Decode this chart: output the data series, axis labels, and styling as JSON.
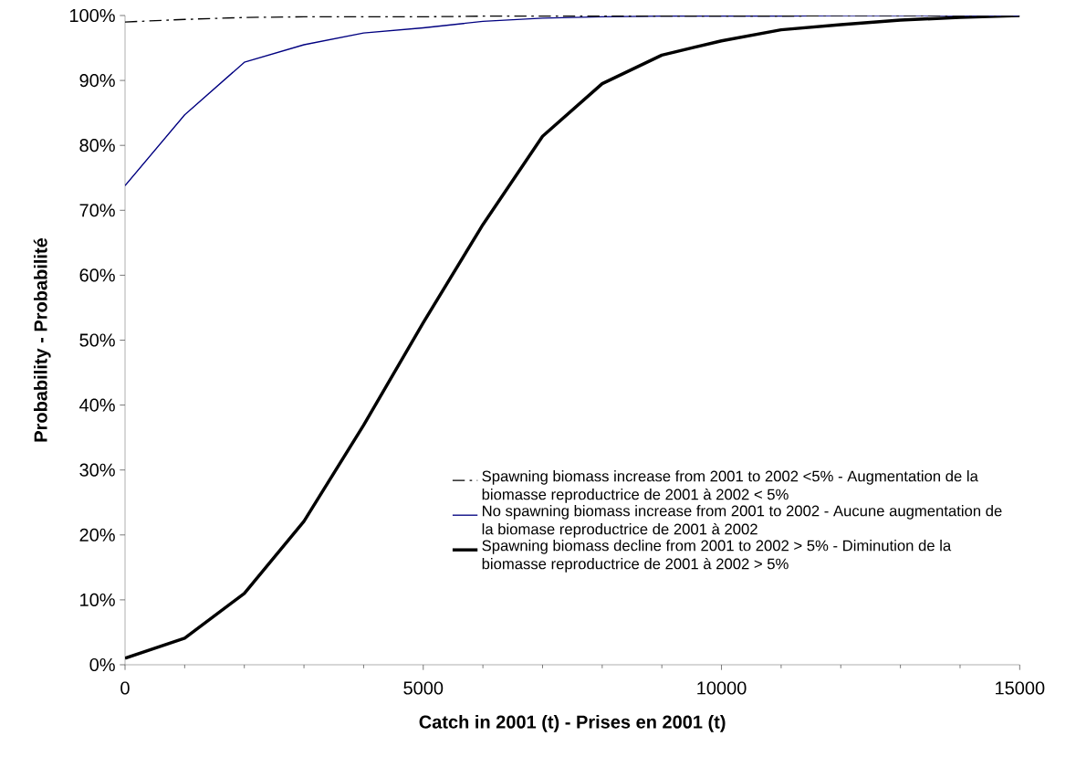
{
  "chart_data": {
    "type": "line",
    "xlabel": "Catch in 2001 (t) - Prises en 2001 (t)",
    "ylabel": "Probability - Probabilité",
    "x": [
      0,
      1000,
      2000,
      3000,
      4000,
      5000,
      6000,
      7000,
      8000,
      9000,
      10000,
      11000,
      12000,
      13000,
      14000,
      15000
    ],
    "series": [
      {
        "name": "Spawning biomass increase from 2001 to 2002 <5% - Augmentation de la biomasse reproductrice de 2001 à 2002 < 5%",
        "color": "#000000",
        "line_style": "dashdot",
        "values": [
          99.0,
          99.4,
          99.7,
          99.8,
          99.8,
          99.8,
          99.9,
          99.9,
          99.9,
          99.9,
          99.9,
          99.9,
          100,
          100,
          100,
          100
        ]
      },
      {
        "name": "No spawning biomass increase from 2001 to 2002 - Aucune augmentation de la biomase reproductrice de 2001 à 2002",
        "color": "#000080",
        "line_style": "solid",
        "values": [
          73.8,
          84.7,
          92.8,
          95.5,
          97.3,
          98.1,
          99.1,
          99.6,
          99.8,
          99.9,
          99.9,
          99.9,
          100,
          100,
          100,
          100
        ]
      },
      {
        "name": "Spawning biomass decline from 2001 to 2002 > 5% - Diminution de la biomasse reproductrice de 2001 à 2002 > 5%",
        "color": "#000000",
        "line_style": "solid",
        "values": [
          1.0,
          4.1,
          11.0,
          22.1,
          36.9,
          52.7,
          67.8,
          81.4,
          89.5,
          93.9,
          96.1,
          97.8,
          98.6,
          99.3,
          99.7,
          100
        ]
      }
    ],
    "xlim": [
      0,
      15000
    ],
    "xticks": [
      0,
      5000,
      10000,
      15000
    ],
    "ylim": [
      0,
      100
    ],
    "yticks": [
      {
        "value": 0,
        "label": "0%"
      },
      {
        "value": 10,
        "label": "10%"
      },
      {
        "value": 20,
        "label": "20%"
      },
      {
        "value": 30,
        "label": "30%"
      },
      {
        "value": 40,
        "label": "40%"
      },
      {
        "value": 50,
        "label": "50%"
      },
      {
        "value": 60,
        "label": "60%"
      },
      {
        "value": 70,
        "label": "70%"
      },
      {
        "value": 80,
        "label": "80%"
      },
      {
        "value": 90,
        "label": "90%"
      },
      {
        "value": 100,
        "label": "100%"
      }
    ],
    "grid": false,
    "legend": "bottom right",
    "marker": "none"
  }
}
